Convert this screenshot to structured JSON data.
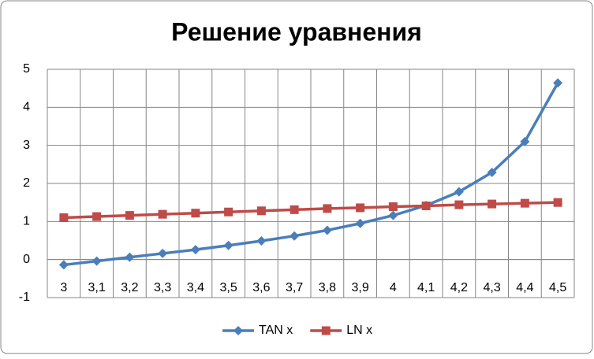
{
  "chart_data": {
    "type": "line",
    "title": "Решение уравнения",
    "categories": [
      "3",
      "3,1",
      "3,2",
      "3,3",
      "3,4",
      "3,5",
      "3,6",
      "3,7",
      "3,8",
      "3,9",
      "4",
      "4,1",
      "4,2",
      "4,3",
      "4,4",
      "4,5"
    ],
    "series": [
      {
        "name": "TAN x",
        "color": "#4a7ebb",
        "marker": "diamond",
        "values": [
          -0.14,
          -0.04,
          0.06,
          0.16,
          0.26,
          0.37,
          0.49,
          0.62,
          0.77,
          0.95,
          1.16,
          1.42,
          1.78,
          2.29,
          3.1,
          4.64
        ]
      },
      {
        "name": "LN x",
        "color": "#be4b48",
        "marker": "square",
        "values": [
          1.1,
          1.13,
          1.16,
          1.19,
          1.22,
          1.25,
          1.28,
          1.31,
          1.34,
          1.36,
          1.39,
          1.41,
          1.44,
          1.46,
          1.48,
          1.5
        ]
      }
    ],
    "ylim": [
      -1,
      5
    ],
    "yticks": [
      -1,
      0,
      1,
      2,
      3,
      4,
      5
    ],
    "grid": true,
    "legend": "bottom"
  }
}
